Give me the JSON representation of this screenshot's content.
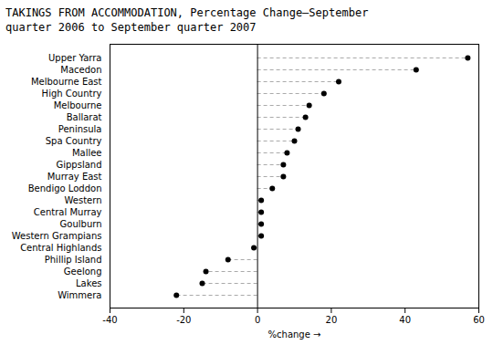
{
  "chart_data": {
    "type": "dot",
    "orientation": "horizontal",
    "title": "TAKINGS FROM ACCOMMODATION, Percentage Change—September\nquarter 2006 to September quarter 2007",
    "xlabel": "%change",
    "categories": [
      "Upper Yarra",
      "Macedon",
      "Melbourne East",
      "High Country",
      "Melbourne",
      "Ballarat",
      "Peninsula",
      "Spa Country",
      "Mallee",
      "Gippsland",
      "Murray East",
      "Bendigo Loddon",
      "Western",
      "Central Murray",
      "Goulburn",
      "Western Grampians",
      "Central Highlands",
      "Phillip Island",
      "Geelong",
      "Lakes",
      "Wimmera"
    ],
    "values": [
      57,
      43,
      22,
      18,
      14,
      13,
      11,
      10,
      8,
      7,
      7,
      4,
      1,
      1,
      1,
      1,
      -1,
      -8,
      -14,
      -15,
      -22
    ],
    "xlim": [
      -40,
      60
    ],
    "xticks": [
      -40,
      -20,
      0,
      20,
      40,
      60
    ],
    "color": "#000000",
    "marker": "circle",
    "line_style": "dashed",
    "grid": false
  }
}
